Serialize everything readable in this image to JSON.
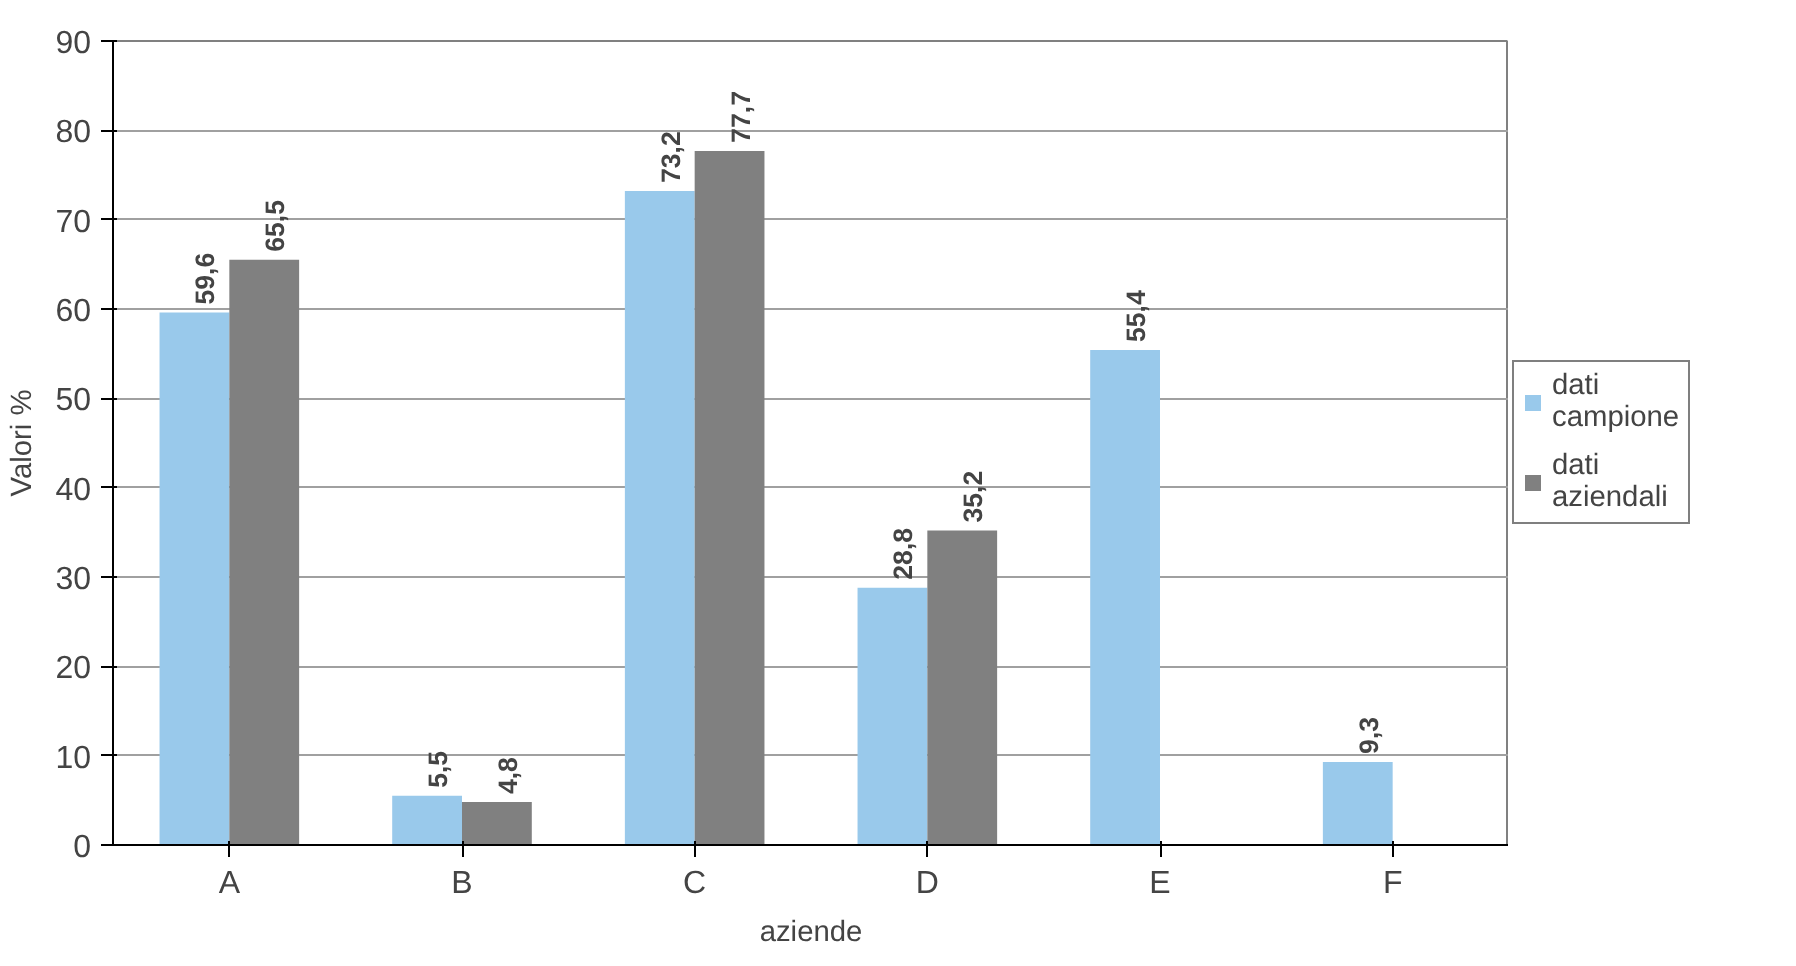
{
  "chart_data": {
    "type": "bar",
    "xlabel": "aziende",
    "ylabel": "Valori %",
    "categories": [
      "A",
      "B",
      "C",
      "D",
      "E",
      "F"
    ],
    "series": [
      {
        "name": "dati campione",
        "color": "#99c9eb",
        "values": [
          59.6,
          5.5,
          73.2,
          28.8,
          55.4,
          9.3
        ],
        "value_labels": [
          "59,6",
          "5,5",
          "73,2",
          "28,8",
          "55,4",
          "9,3"
        ]
      },
      {
        "name": "dati aziendali",
        "color": "#808080",
        "values": [
          65.5,
          4.8,
          77.7,
          35.2,
          null,
          null
        ],
        "value_labels": [
          "65,5",
          "4,8",
          "77,7",
          "35,2",
          null,
          null
        ]
      }
    ],
    "ylim": [
      0,
      90
    ],
    "yticks": [
      0,
      10,
      20,
      30,
      40,
      50,
      60,
      70,
      80,
      90
    ],
    "grid": "y",
    "legend": "right"
  }
}
